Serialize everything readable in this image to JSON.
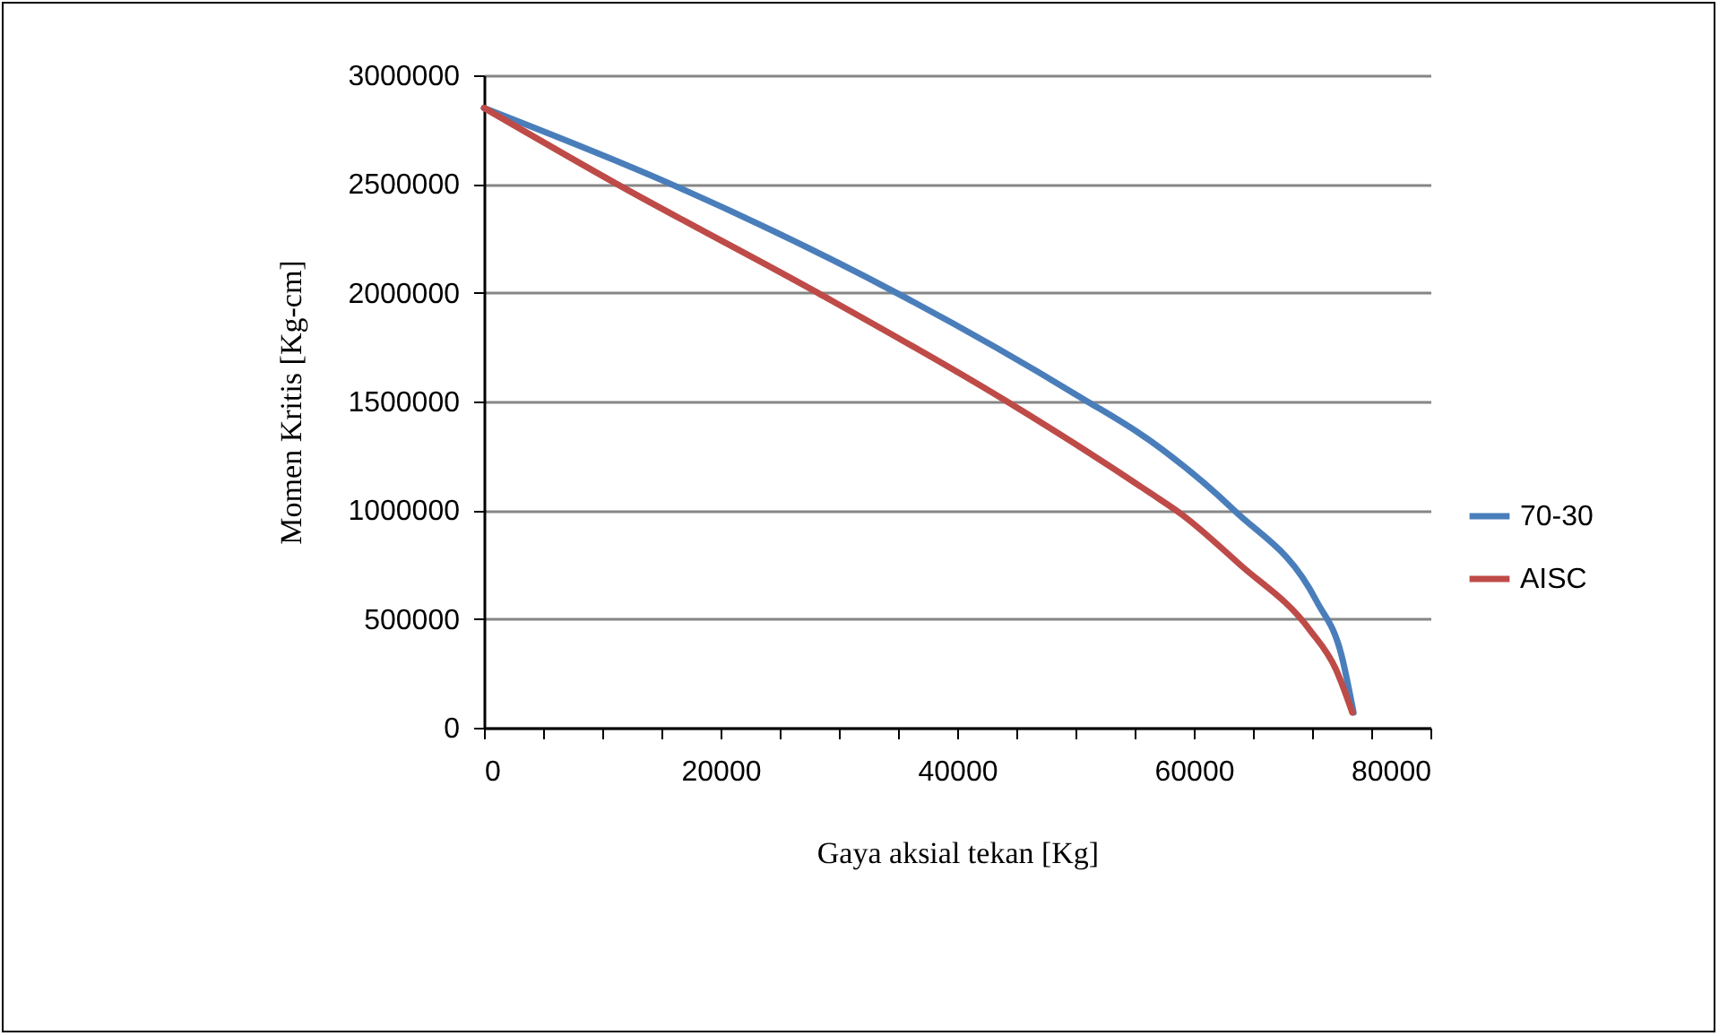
{
  "chart_data": {
    "type": "line",
    "xlabel": "Gaya aksial tekan [Kg]",
    "ylabel": "Momen Kritis  [Kg-cm]",
    "xlim": [
      0,
      80000
    ],
    "ylim": [
      0,
      3000000
    ],
    "xticks": [
      0,
      {
        "value": 5000,
        "label": null
      },
      {
        "value": 10000,
        "label": null
      },
      {
        "value": 15000,
        "label": null
      },
      20000,
      {
        "value": 25000,
        "label": null
      },
      {
        "value": 30000,
        "label": null
      },
      {
        "value": 35000,
        "label": null
      },
      40000,
      {
        "value": 45000,
        "label": null
      },
      {
        "value": 50000,
        "label": null
      },
      {
        "value": 55000,
        "label": null
      },
      60000,
      {
        "value": 65000,
        "label": null
      },
      {
        "value": 70000,
        "label": null
      },
      {
        "value": 75000,
        "label": null
      },
      80000
    ],
    "yticks": [
      0,
      500000,
      1000000,
      1500000,
      2000000,
      2500000,
      3000000
    ],
    "grid": "y",
    "legend": "right",
    "marker": "none",
    "line_style": "solid",
    "series": [
      {
        "name": "70-30",
        "color": "#4a7ebb",
        "x": [
          0,
          15800,
          35200,
          50400,
          56300,
          63400,
          70400,
          72500,
          73500
        ],
        "values": [
          2850000,
          2500000,
          1990000,
          1520000,
          1320000,
          1000000,
          580000,
          330000,
          70000
        ]
      },
      {
        "name": "AISC",
        "color": "#be4b48",
        "x": [
          0,
          10900,
          28200,
          43900,
          56300,
          59000,
          63900,
          69800,
          72000,
          73400
        ],
        "values": [
          2850000,
          2510000,
          2000000,
          1510000,
          1080000,
          980000,
          750000,
          450000,
          270000,
          70000
        ]
      }
    ]
  }
}
